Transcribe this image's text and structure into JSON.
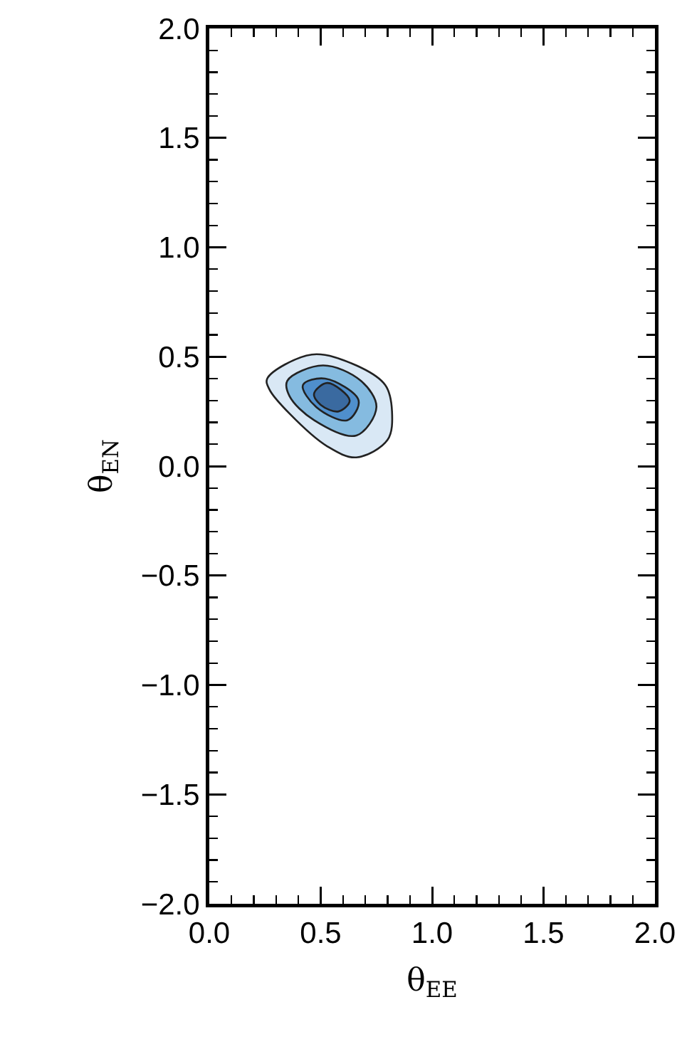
{
  "chart_data": {
    "type": "area",
    "xlabel": "θ$_{EE}$",
    "ylabel": "θ$_{EN}$",
    "xlim": [
      0,
      2
    ],
    "ylim": [
      -2,
      2
    ],
    "xticks": [
      {
        "value": 0,
        "label": "0.0"
      },
      {
        "value": 0.5,
        "label": "0.5"
      },
      {
        "value": 1,
        "label": "1.0"
      },
      {
        "value": 1.5,
        "label": "1.5"
      },
      {
        "value": 2,
        "label": "2.0"
      }
    ],
    "yticks": [
      {
        "value": -2,
        "label": "−2.0"
      },
      {
        "value": -1.5,
        "label": "−1.5"
      },
      {
        "value": -1,
        "label": "−1.0"
      },
      {
        "value": -0.5,
        "label": "−0.5"
      },
      {
        "value": 0,
        "label": "0.0"
      },
      {
        "value": 0.5,
        "label": "0.5"
      },
      {
        "value": 1,
        "label": "1.0"
      },
      {
        "value": 1.5,
        "label": "1.5"
      },
      {
        "value": 2,
        "label": "2.0"
      }
    ],
    "grid": false,
    "series": [
      {
        "color": "#d9e8f5",
        "x": [
          0.26,
          0.46,
          0.66,
          0.79,
          0.82,
          0.8,
          0.66,
          0.53,
          0.36,
          0.27,
          0.26
        ],
        "values": [
          0.4,
          0.51,
          0.46,
          0.37,
          0.25,
          0.12,
          0.04,
          0.09,
          0.24,
          0.35,
          0.4
        ]
      },
      {
        "color": "#85bbe0",
        "x": [
          0.35,
          0.51,
          0.68,
          0.75,
          0.66,
          0.47,
          0.36,
          0.35
        ],
        "values": [
          0.39,
          0.46,
          0.39,
          0.27,
          0.14,
          0.21,
          0.32,
          0.39
        ]
      },
      {
        "color": "#4f8fcc",
        "x": [
          0.42,
          0.52,
          0.67,
          0.62,
          0.48,
          0.42
        ],
        "values": [
          0.37,
          0.4,
          0.3,
          0.21,
          0.27,
          0.37
        ]
      },
      {
        "color": "#3a6aa0",
        "x": [
          0.47,
          0.53,
          0.63,
          0.58,
          0.5,
          0.47
        ],
        "values": [
          0.33,
          0.38,
          0.3,
          0.25,
          0.28,
          0.33
        ]
      }
    ]
  }
}
